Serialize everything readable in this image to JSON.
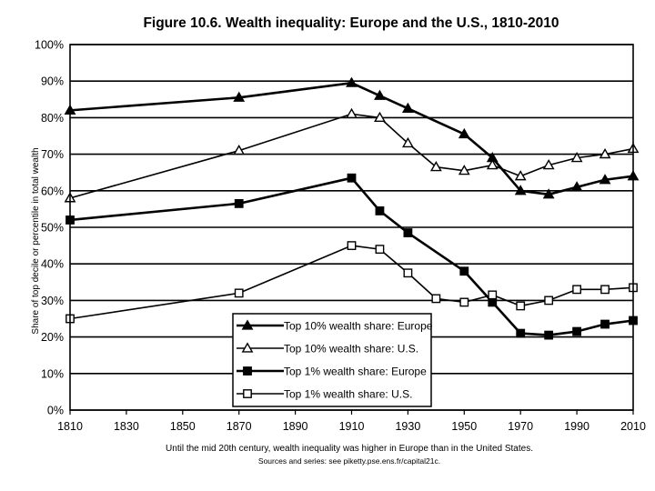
{
  "chart_data": {
    "type": "line",
    "title": "Figure 10.6. Wealth inequality: Europe and the U.S., 1810-2010",
    "xlabel": "",
    "ylabel": "Share of top decile or percentile in total wealth",
    "xlim": [
      1810,
      2010
    ],
    "ylim": [
      0,
      100
    ],
    "x_ticks": [
      "1810",
      "1830",
      "1850",
      "1870",
      "1890",
      "1910",
      "1930",
      "1950",
      "1970",
      "1990",
      "2010"
    ],
    "y_ticks": [
      "0%",
      "10%",
      "20%",
      "30%",
      "40%",
      "50%",
      "60%",
      "70%",
      "80%",
      "90%",
      "100%"
    ],
    "grid": "horizontal",
    "legend_position": "bottom-center",
    "series": [
      {
        "name": "Top 10% wealth share: Europe",
        "marker": "filled-triangle",
        "x": [
          1810,
          1870,
          1910,
          1920,
          1930,
          1950,
          1960,
          1970,
          1980,
          1990,
          2000,
          2010
        ],
        "values": [
          82,
          85.5,
          89.5,
          86,
          82.5,
          75.5,
          69,
          60,
          59,
          61,
          63,
          64
        ]
      },
      {
        "name": "Top 10% wealth share: U.S.",
        "marker": "open-triangle",
        "x": [
          1810,
          1870,
          1910,
          1920,
          1930,
          1940,
          1950,
          1960,
          1970,
          1980,
          1990,
          2000,
          2010
        ],
        "values": [
          58,
          71,
          81,
          80,
          73,
          66.5,
          65.5,
          67,
          64,
          67,
          69,
          70,
          71.5
        ]
      },
      {
        "name": "Top 1% wealth share: Europe",
        "marker": "filled-square",
        "x": [
          1810,
          1870,
          1910,
          1920,
          1930,
          1950,
          1960,
          1970,
          1980,
          1990,
          2000,
          2010
        ],
        "values": [
          52,
          56.5,
          63.5,
          54.5,
          48.5,
          38,
          29.5,
          21,
          20.5,
          21.5,
          23.5,
          24.5
        ]
      },
      {
        "name": "Top 1% wealth share: U.S.",
        "marker": "open-square",
        "x": [
          1810,
          1870,
          1910,
          1920,
          1930,
          1940,
          1950,
          1960,
          1970,
          1980,
          1990,
          2000,
          2010
        ],
        "values": [
          25,
          32,
          45,
          44,
          37.5,
          30.5,
          29.5,
          31.5,
          28.5,
          30,
          33,
          33,
          33.5
        ]
      }
    ],
    "footnote": "Until the mid 20th century, wealth inequality was higher in Europe than in the United States.",
    "source": "Sources and series: see piketty.pse.ens.fr/capital21c."
  }
}
